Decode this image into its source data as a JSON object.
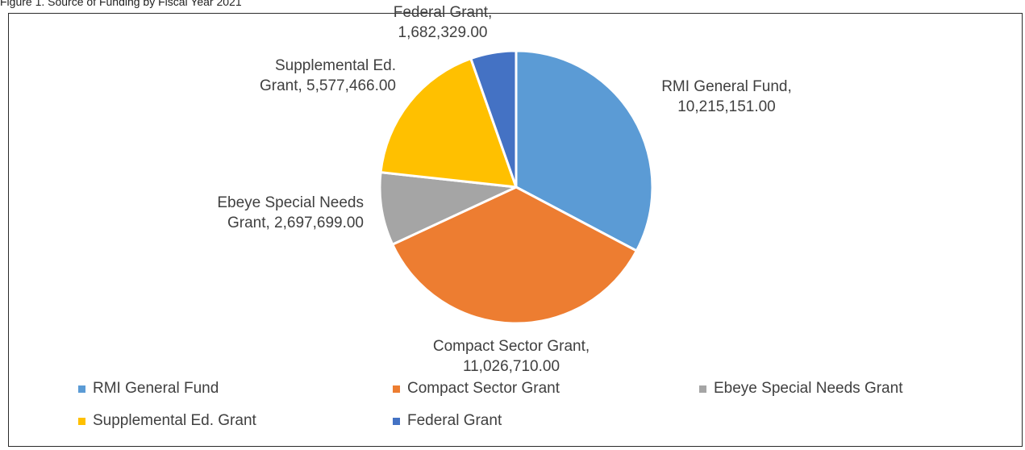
{
  "caption": "Figure 1. Source of Funding by Fiscal Year 2021",
  "chart_data": {
    "type": "pie",
    "title": "",
    "labels": [
      "RMI General Fund",
      "Compact Sector Grant",
      "Ebeye Special Needs Grant",
      "Supplemental Ed. Grant",
      "Federal Grant"
    ],
    "values": [
      10215151,
      11026710,
      2697699,
      5577466,
      1682329
    ],
    "data_labels": [
      [
        "RMI General Fund,",
        "10,215,151.00"
      ],
      [
        "Compact Sector Grant,",
        "11,026,710.00"
      ],
      [
        "Ebeye Special Needs",
        "Grant, 2,697,699.00"
      ],
      [
        "Supplemental Ed.",
        "Grant, 5,577,466.00"
      ],
      [
        "Federal Grant,",
        "1,682,329.00"
      ]
    ],
    "colors": [
      "#5b9bd5",
      "#ed7d31",
      "#a5a5a5",
      "#ffc000",
      "#4472c4"
    ],
    "start_angle": "12 o'clock, clockwise",
    "legend_position": "bottom"
  }
}
